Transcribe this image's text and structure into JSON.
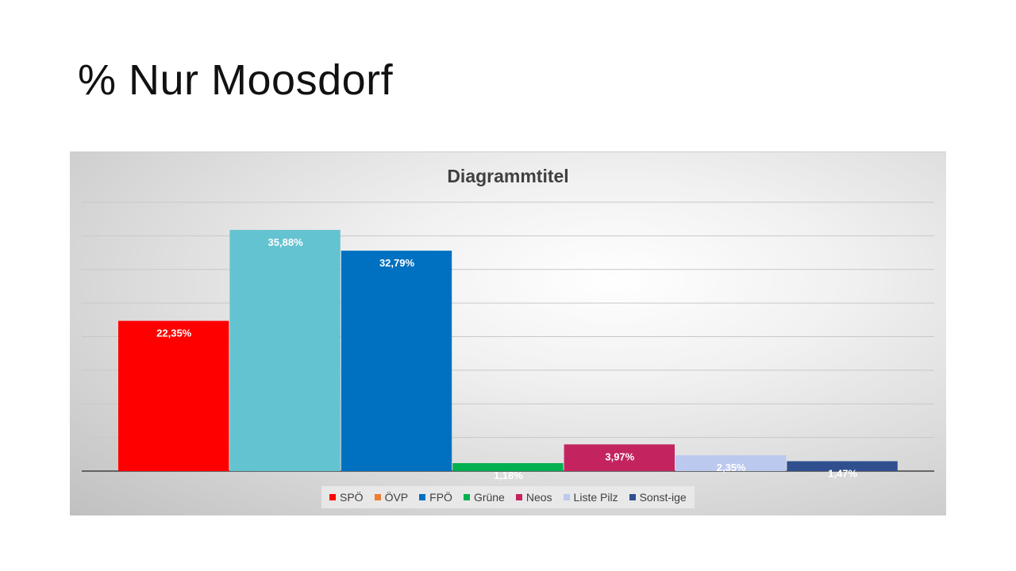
{
  "slide": {
    "title": "% Nur Moosdorf"
  },
  "chart_data": {
    "type": "bar",
    "title": "Diagrammtitel",
    "series": [
      {
        "name": "SPÖ",
        "value": 22.35,
        "label": "22,35%",
        "color": "#ff0000"
      },
      {
        "name": "ÖVP",
        "value": 35.88,
        "label": "35,88%",
        "color": "#64c3d0"
      },
      {
        "name": "FPÖ",
        "value": 32.79,
        "label": "32,79%",
        "color": "#0070c0"
      },
      {
        "name": "Grüne",
        "value": 1.18,
        "label": "1,18%",
        "color": "#00b050"
      },
      {
        "name": "Neos",
        "value": 3.97,
        "label": "3,97%",
        "color": "#c3245f"
      },
      {
        "name": "Liste Pilz",
        "value": 2.35,
        "label": "2,35%",
        "color": "#bcc9ef"
      },
      {
        "name": "Sonst-ige",
        "value": 1.47,
        "label": "1,47%",
        "color": "#2f4f8f"
      }
    ],
    "legend": [
      {
        "name": "SPÖ",
        "color": "#ff0000"
      },
      {
        "name": "ÖVP",
        "color": "#ed7d31"
      },
      {
        "name": "FPÖ",
        "color": "#0070c0"
      },
      {
        "name": "Grüne",
        "color": "#00b050"
      },
      {
        "name": "Neos",
        "color": "#c3245f"
      },
      {
        "name": "Liste Pilz",
        "color": "#bcc9ef"
      },
      {
        "name": "Sonst-ige",
        "color": "#2f4f8f"
      }
    ],
    "ylim": [
      0,
      40
    ],
    "grid": true,
    "legend_position": "bottom"
  }
}
